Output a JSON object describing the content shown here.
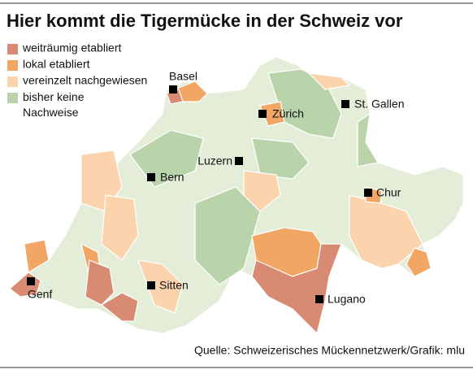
{
  "title": "Hier kommt die Tigermücke in der Schweiz vor",
  "legend": [
    {
      "label": "weiträumig etabliert",
      "color": "#d88a72"
    },
    {
      "label": "lokal etabliert",
      "color": "#f2a664"
    },
    {
      "label": "vereinzelt nachgewiesen",
      "color": "#fbd3ad"
    },
    {
      "label": "bisher keine Nachweise",
      "color": "#b9d4aa"
    }
  ],
  "cities": [
    {
      "label": "Basel"
    },
    {
      "label": "Zürich"
    },
    {
      "label": "St. Gallen"
    },
    {
      "label": "Luzern"
    },
    {
      "label": "Bern"
    },
    {
      "label": "Chur"
    },
    {
      "label": "Genf"
    },
    {
      "label": "Sitten"
    },
    {
      "label": "Lugano"
    }
  ],
  "source": "Quelle: Schweizerisches Mückennetzwerk/Grafik: mlu"
}
